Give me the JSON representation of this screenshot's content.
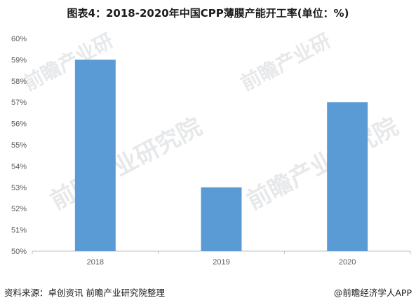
{
  "title": "图表4：2018-2020年中国CPP薄膜产能开工率(单位：%)",
  "footer": {
    "source": "资料来源：卓创资讯 前瞻产业研究院整理",
    "brand": "@前瞻经济学人APP"
  },
  "watermark": {
    "brand": "前瞻产业研究院",
    "short": "前瞻产业研"
  },
  "colors": {
    "bar": "#5b9bd5",
    "axis": "#bfbfbf",
    "tick_text": "#595959"
  },
  "chart_data": {
    "type": "bar",
    "title": "图表4：2018-2020年中国CPP薄膜产能开工率(单位：%)",
    "xlabel": "",
    "ylabel": "",
    "categories": [
      "2018",
      "2019",
      "2020"
    ],
    "values": [
      59,
      53,
      57
    ],
    "ylim": [
      50,
      60
    ],
    "yticks": [
      "50%",
      "51%",
      "52%",
      "53%",
      "54%",
      "55%",
      "56%",
      "57%",
      "58%",
      "59%",
      "60%"
    ],
    "grid": false,
    "legend": "none"
  }
}
